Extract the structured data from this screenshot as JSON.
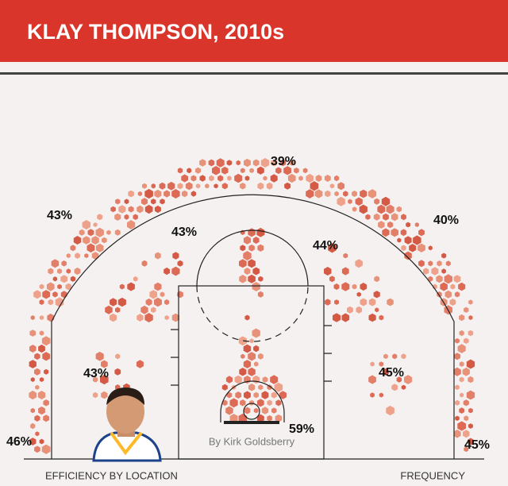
{
  "header": {
    "title": "KLAY THOMPSON, 2010s"
  },
  "zones": [
    {
      "label": "39%"
    },
    {
      "label": "43%"
    },
    {
      "label": "40%"
    },
    {
      "label": "43%"
    },
    {
      "label": "44%"
    },
    {
      "label": "43%"
    },
    {
      "label": "45%"
    },
    {
      "label": "59%"
    },
    {
      "label": "46%"
    },
    {
      "label": "45%"
    }
  ],
  "credit": "By Kirk Goldsberry",
  "legend": {
    "efficiency": "EFFICIENCY BY LOCATION",
    "frequency": "FREQUENCY"
  }
}
